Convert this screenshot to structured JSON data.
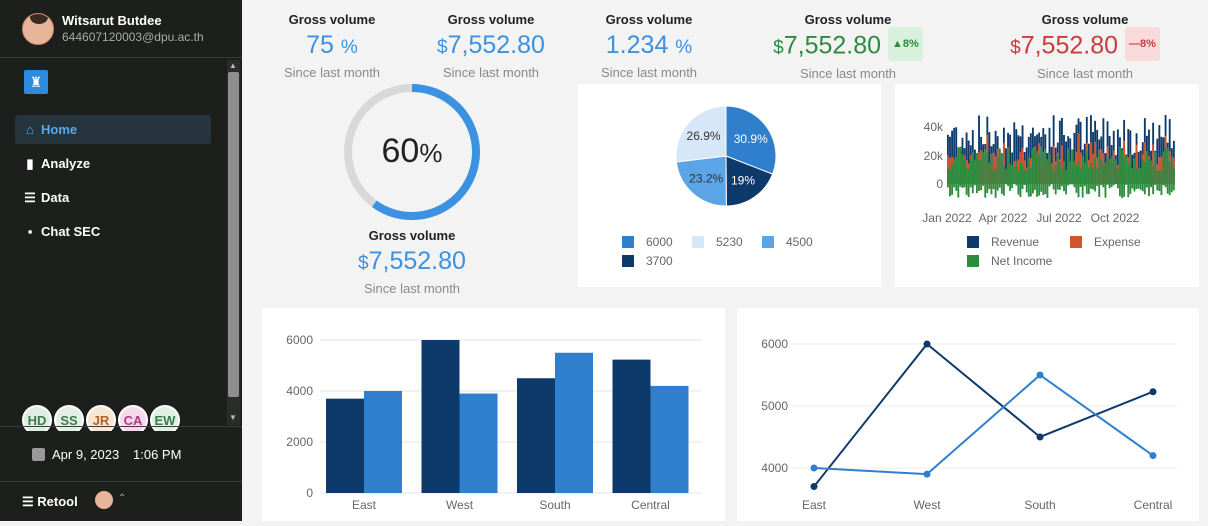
{
  "user": {
    "name": "Witsarut Butdee",
    "email": "644607120003@dpu.ac.th"
  },
  "nav": [
    {
      "label": "Home",
      "icon": "home-icon",
      "active": true
    },
    {
      "label": "Analyze",
      "icon": "bar-chart-icon",
      "active": false
    },
    {
      "label": "Data",
      "icon": "database-icon",
      "active": false
    },
    {
      "label": "Chat SEC",
      "icon": "chat-icon",
      "active": false
    }
  ],
  "avatars": [
    {
      "initials": "HD",
      "color": "#dfeee2",
      "text": "#3a7d4a"
    },
    {
      "initials": "SS",
      "color": "#e3efe5",
      "text": "#3a7d4a"
    },
    {
      "initials": "JR",
      "color": "#f7e6d2",
      "text": "#b4622a"
    },
    {
      "initials": "CA",
      "color": "#f7d9ec",
      "text": "#b03a88"
    },
    {
      "initials": "EW",
      "color": "#dff0e3",
      "text": "#3a7d4a"
    }
  ],
  "footer": {
    "date": "Apr 9, 2023",
    "time": "1:06 PM",
    "brand": "Retool"
  },
  "stats": [
    {
      "label": "Gross volume",
      "value": "75",
      "suffix": "%",
      "prefix": "",
      "sub": "Since last month",
      "color": "#3a92e0"
    },
    {
      "label": "Gross volume",
      "value": "7,552.80",
      "suffix": "",
      "prefix": "$",
      "sub": "Since last month",
      "color": "#3a92e0"
    },
    {
      "label": "Gross volume",
      "value": "1.234",
      "suffix": "%",
      "prefix": "",
      "sub": "Since last month",
      "color": "#3a92e0"
    },
    {
      "label": "Gross volume",
      "value": "7,552.80",
      "suffix": "",
      "prefix": "$",
      "sub": "Since last month",
      "color": "#2e8b3e",
      "badge": "8%",
      "badge_bg": "#d8f0dc",
      "badge_fg": "#2e8b3e",
      "badge_icon": "▲"
    },
    {
      "label": "Gross volume",
      "value": "7,552.80",
      "suffix": "",
      "prefix": "$",
      "sub": "Since last month",
      "color": "#cc3b3b",
      "badge": "8%",
      "badge_bg": "#f8dada",
      "badge_fg": "#cc3b3b",
      "badge_icon": "—"
    }
  ],
  "gauge": {
    "value": "60",
    "unit": "%",
    "fraction": 0.6,
    "label": "Gross volume",
    "prefix": "$",
    "amount": "7,552.80",
    "sub": "Since last month"
  },
  "chart_data": [
    {
      "type": "pie",
      "values": [
        30.9,
        19,
        23.2,
        26.9
      ],
      "slice_labels": [
        "30.9%",
        "19%",
        "23.2%",
        "26.9%"
      ],
      "colors": [
        "#2f7fcc",
        "#0d3a6a",
        "#5ba4e6",
        "#d6e8f8"
      ],
      "legend": [
        {
          "label": "6000",
          "color": "#2f7fcc"
        },
        {
          "label": "5230",
          "color": "#d6e8f8"
        },
        {
          "label": "4500",
          "color": "#5ba4e6"
        },
        {
          "label": "3700",
          "color": "#0d3a6a"
        }
      ]
    },
    {
      "type": "area",
      "y_ticks": [
        "40k",
        "20k",
        "0"
      ],
      "x_ticks": [
        "Jan 2022",
        "Apr 2022",
        "Jul 2022",
        "Oct 2022"
      ],
      "ylim": [
        0,
        45000
      ],
      "series": [
        {
          "name": "Revenue",
          "color": "#0d3a6a"
        },
        {
          "name": "Expense",
          "color": "#d2542a"
        },
        {
          "name": "Net Income",
          "color": "#2e8b3e"
        }
      ]
    },
    {
      "type": "bar",
      "categories": [
        "East",
        "West",
        "South",
        "Central"
      ],
      "series": [
        {
          "values": [
            3700,
            6000,
            4500,
            5230
          ],
          "color": "#0d3a6a"
        },
        {
          "values": [
            4000,
            3900,
            5500,
            4200
          ],
          "color": "#2f7fcc"
        }
      ],
      "ylim": [
        0,
        6000
      ],
      "y_ticks": [
        "6000",
        "4000",
        "2000",
        "0"
      ]
    },
    {
      "type": "line",
      "categories": [
        "East",
        "West",
        "South",
        "Central"
      ],
      "series": [
        {
          "values": [
            3700,
            6000,
            4500,
            5230
          ],
          "color": "#0d3a6a"
        },
        {
          "values": [
            4000,
            3900,
            5500,
            4200
          ],
          "color": "#2f7fcc"
        }
      ],
      "ylim": [
        3700,
        6000
      ],
      "y_ticks": [
        "6000",
        "5000",
        "4000"
      ]
    }
  ]
}
